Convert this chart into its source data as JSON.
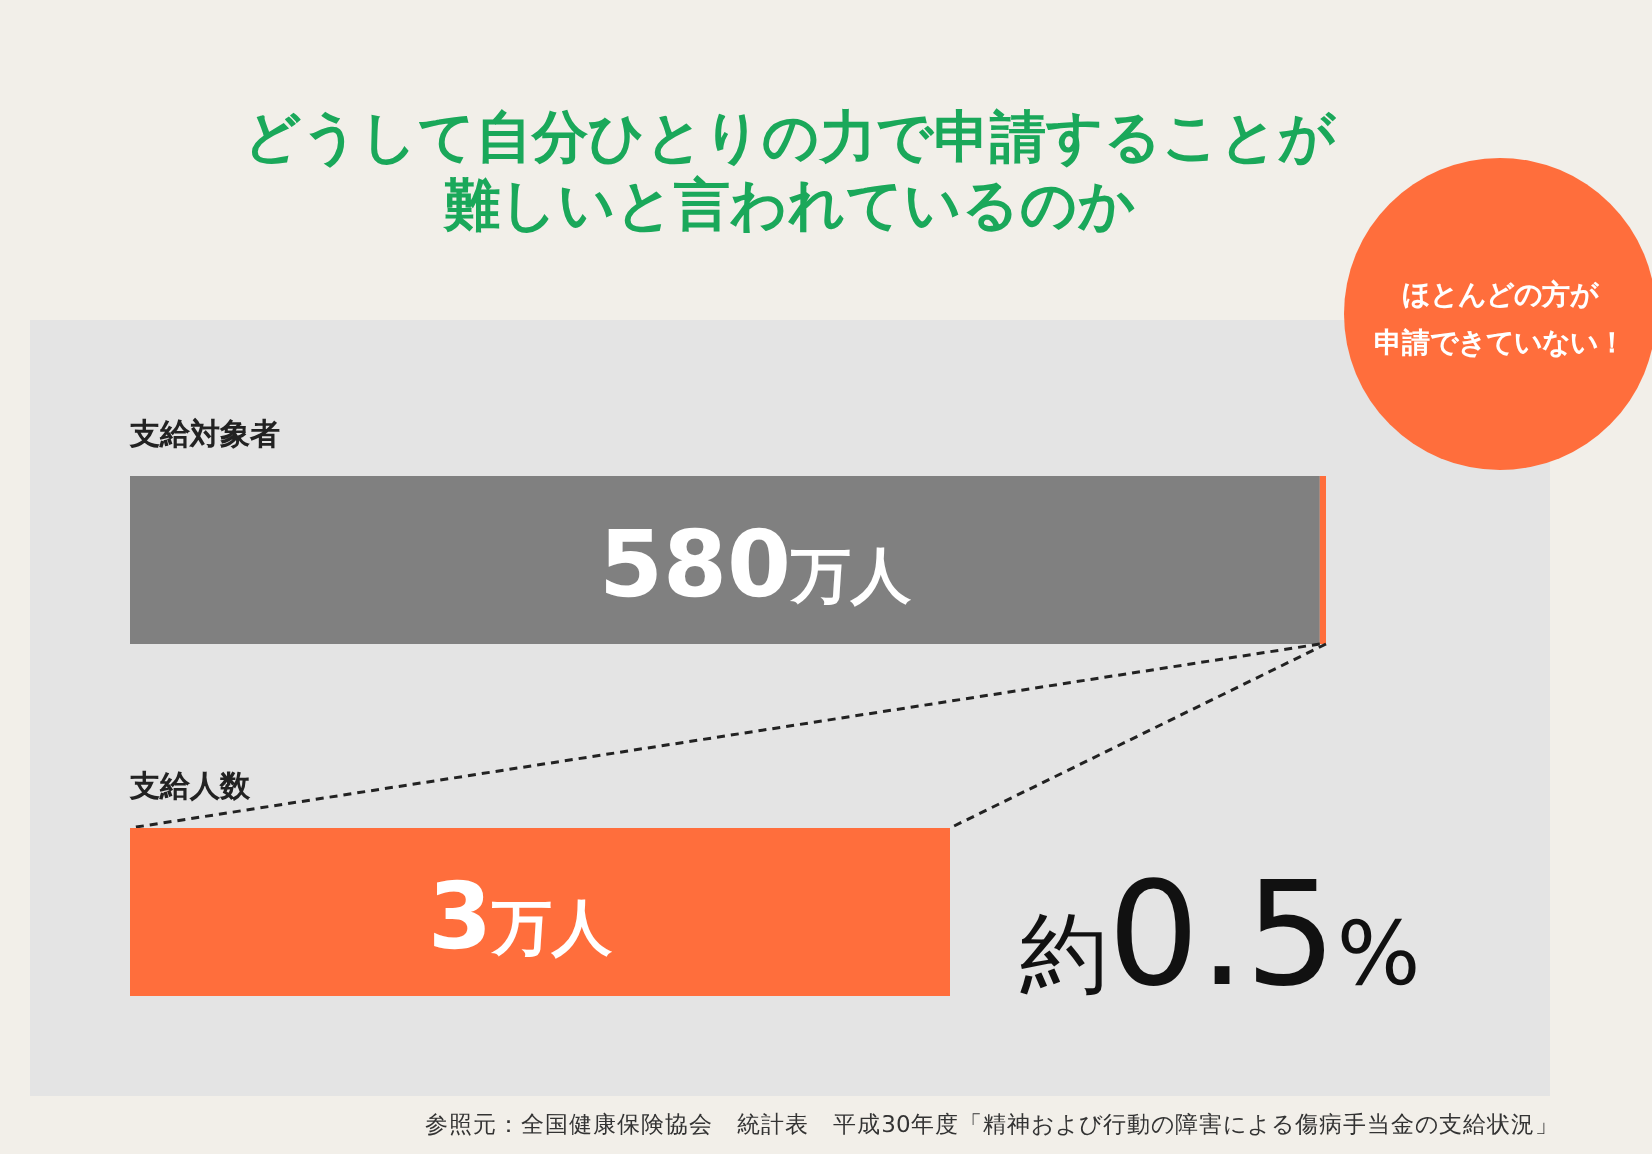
{
  "chart_data": {
    "type": "other",
    "title": "どうして自分ひとりの力で申請することが難しいと言われているのか",
    "categories": [
      "支給対象者",
      "支給人数"
    ],
    "values": [
      580,
      3
    ],
    "value_labels": [
      "580万人",
      "3万人"
    ],
    "colors": [
      "#808080",
      "#ff6e3c"
    ],
    "annotations": [
      "ほとんどの方が",
      "申請できていない！",
      "約0.5%",
      "参照元：全国健康保険協会　統計表　平成30年度「精神および行動の障害による傷病手当金の支給状況」"
    ]
  }
}
